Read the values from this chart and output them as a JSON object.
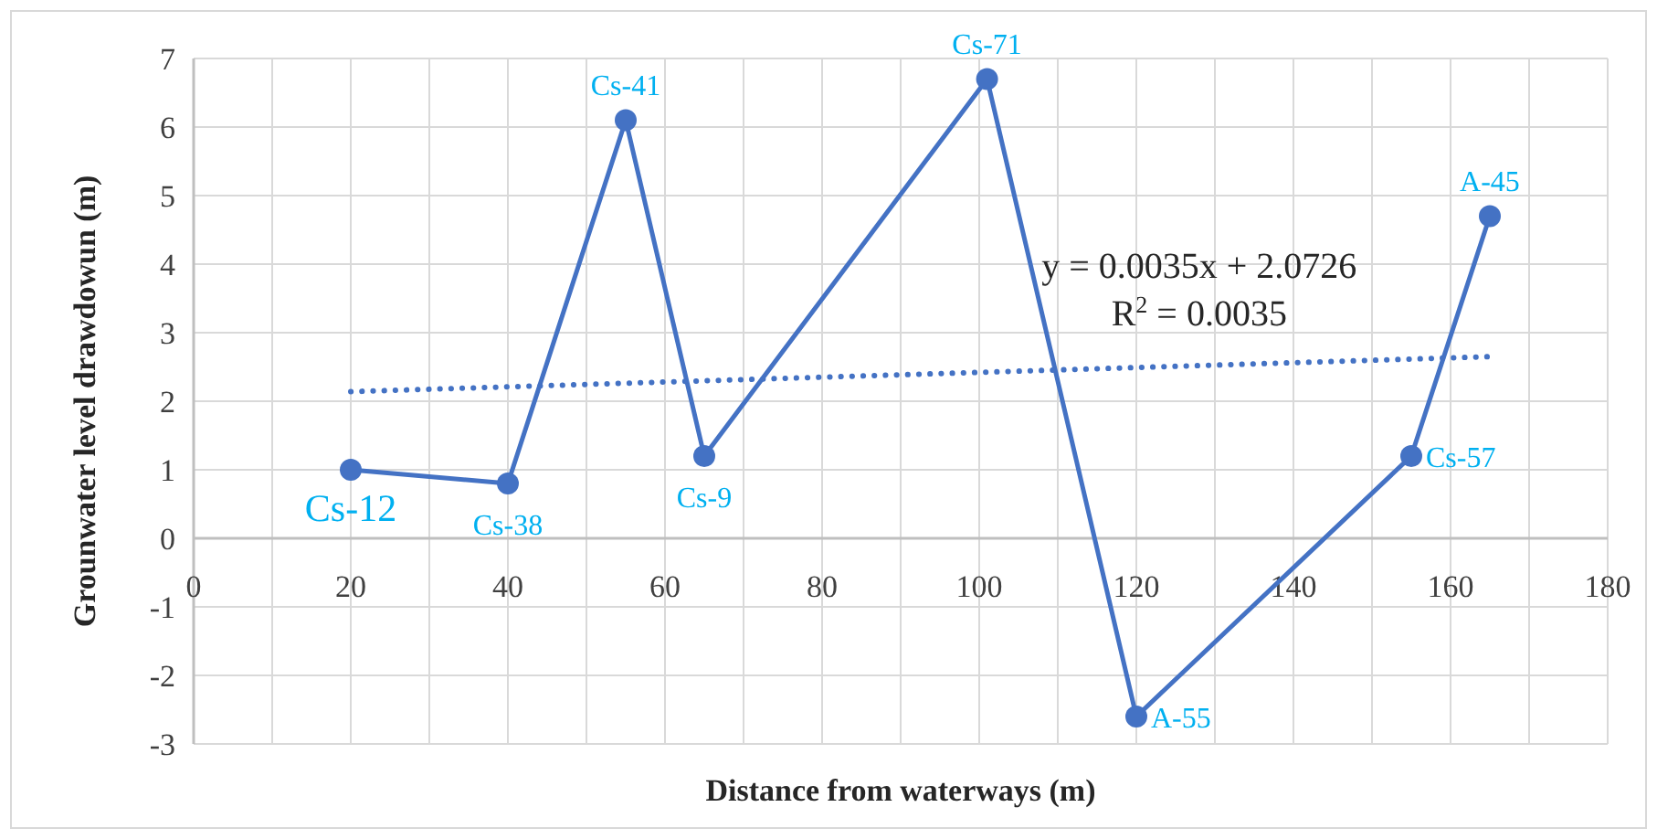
{
  "chart_data": {
    "type": "line",
    "xlabel": "Distance from waterways (m)",
    "ylabel": "Grounwater level drawdowun (m)",
    "xlim": [
      0,
      180
    ],
    "ylim": [
      -3,
      7
    ],
    "xticks": [
      0,
      {
        "value": 10,
        "label": null
      },
      20,
      {
        "value": 30,
        "label": null
      },
      40,
      {
        "value": 50,
        "label": null
      },
      60,
      {
        "value": 70,
        "label": null
      },
      80,
      {
        "value": 90,
        "label": null
      },
      100,
      {
        "value": 110,
        "label": null
      },
      120,
      {
        "value": 130,
        "label": null
      },
      140,
      {
        "value": 150,
        "label": null
      },
      160,
      {
        "value": 170,
        "label": null
      },
      180
    ],
    "yticks": [
      -3,
      -2,
      -1,
      0,
      1,
      2,
      3,
      4,
      5,
      6,
      7
    ],
    "grid": true,
    "series": [
      {
        "color": "#4472c4",
        "marker": "circle",
        "line_style": "solid",
        "x": [
          20,
          40,
          55,
          65,
          101,
          120,
          155,
          165
        ],
        "values": [
          1,
          0.8,
          6.1,
          1.2,
          6.7,
          -2.6,
          1.2,
          4.7
        ]
      },
      {
        "color": "#4472c4",
        "marker": "none",
        "line_style": "dotted",
        "x": [
          20,
          165
        ],
        "values": [
          2.14,
          2.65
        ]
      }
    ],
    "annotations": [
      {
        "text": "Cs-12",
        "x": 20,
        "y": 1
      },
      {
        "text": "Cs-38",
        "x": 40,
        "y": 0.8
      },
      {
        "text": "Cs-41",
        "x": 55,
        "y": 6.1
      },
      {
        "text": "Cs-9",
        "x": 65,
        "y": 1.2
      },
      {
        "text": "Cs-71",
        "x": 101,
        "y": 6.7
      },
      {
        "text": "A-55",
        "x": 120,
        "y": -2.6
      },
      {
        "text": "Cs-57",
        "x": 155,
        "y": 1.2
      },
      {
        "text": "A-45",
        "x": 165,
        "y": 4.7
      },
      "y = 0.0035x + 2.0726",
      "R$^{2}$ = 0.0035"
    ]
  }
}
